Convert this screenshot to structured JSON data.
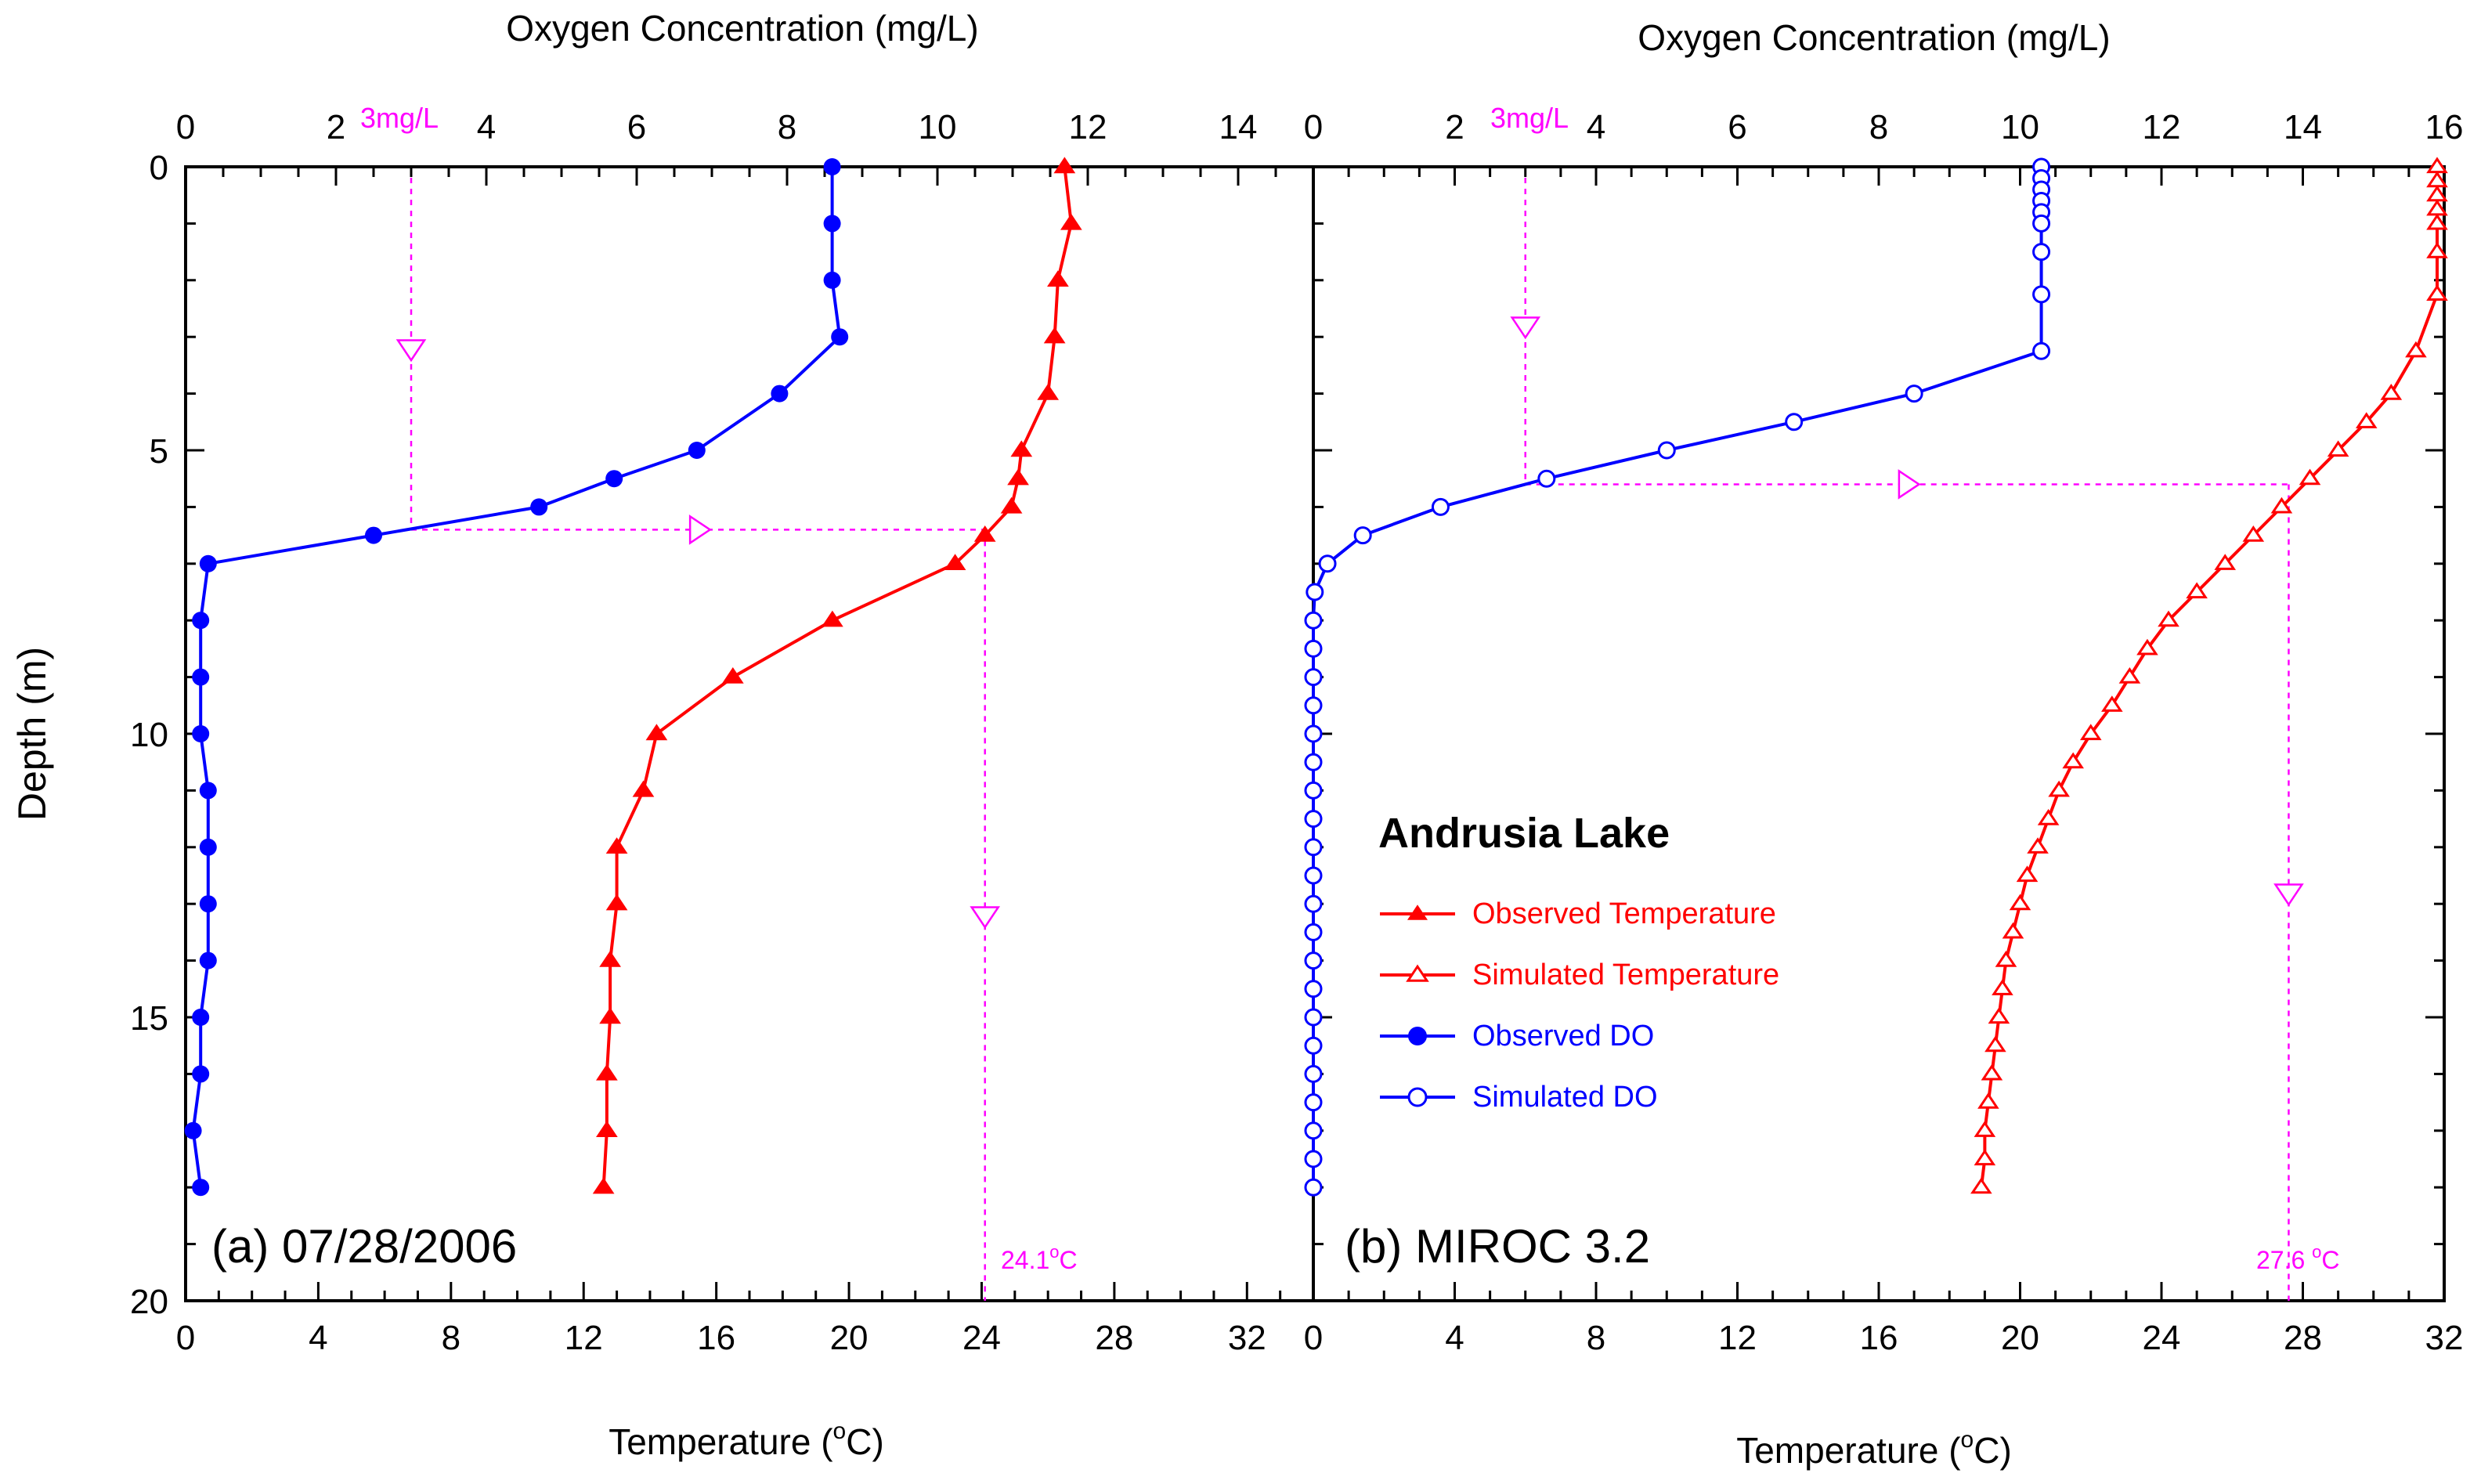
{
  "chart_data": {
    "type": "line",
    "shared": {
      "depth_label": "Depth (m)",
      "depth_ticks": [
        "0",
        "5",
        "10",
        "15",
        "20"
      ],
      "depth_range": [
        0,
        20
      ],
      "temp_label": "Temperature (",
      "temp_label_sup": "o",
      "temp_label_end": "C)",
      "do_label": "Oxygen Concentration (mg/L)"
    },
    "legend": {
      "title": "Andrusia Lake",
      "colors": {
        "temperature": "#ff0000",
        "do": "#0000ff",
        "annotation": "#ff00ff"
      },
      "items": [
        {
          "label": "Observed Temperature",
          "color": "#ff0000",
          "marker": "filled-triangle"
        },
        {
          "label": "Simulated Temperature",
          "color": "#ff0000",
          "marker": "open-triangle"
        },
        {
          "label": "Observed DO",
          "color": "#0000ff",
          "marker": "filled-circle"
        },
        {
          "label": "Simulated DO",
          "color": "#0000ff",
          "marker": "open-circle"
        }
      ]
    },
    "panels": [
      {
        "label": "(a) 07/28/2006",
        "temp_range": [
          0,
          34
        ],
        "temp_ticks": [
          "0",
          "4",
          "8",
          "12",
          "16",
          "20",
          "24",
          "28",
          "32"
        ],
        "do_range": [
          0,
          15
        ],
        "do_ticks": [
          "0",
          "2",
          "4",
          "6",
          "8",
          "10",
          "12",
          "14"
        ],
        "do_threshold": 3,
        "do_threshold_label": "3mg/L",
        "crossing_depth": 6.4,
        "crossing_temp": 24.1,
        "crossing_temp_label": "24.1",
        "crossing_temp_sup": "o",
        "crossing_temp_end": "C",
        "temperature": {
          "name": "Observed Temperature",
          "marker": "filled-triangle",
          "depth": [
            0,
            1,
            2,
            3,
            4,
            5,
            5.5,
            6,
            6.5,
            7,
            8,
            9,
            10,
            11,
            12,
            13,
            14,
            15,
            16,
            17,
            18
          ],
          "values": [
            26.5,
            26.7,
            26.3,
            26.2,
            26.0,
            25.2,
            25.1,
            24.9,
            24.1,
            23.2,
            19.5,
            16.5,
            14.2,
            13.8,
            13.0,
            13.0,
            12.8,
            12.8,
            12.7,
            12.7,
            12.6
          ]
        },
        "do": {
          "name": "Observed DO",
          "marker": "filled-circle",
          "depth": [
            0,
            1,
            2,
            3,
            4,
            5,
            5.5,
            6,
            6.5,
            7,
            8,
            9,
            10,
            11,
            12,
            13,
            14,
            15,
            16,
            17,
            18
          ],
          "values": [
            8.6,
            8.6,
            8.6,
            8.7,
            7.9,
            6.8,
            5.7,
            4.7,
            2.5,
            0.3,
            0.2,
            0.2,
            0.2,
            0.3,
            0.3,
            0.3,
            0.3,
            0.2,
            0.2,
            0.1,
            0.2
          ]
        }
      },
      {
        "label": "(b) MIROC 3.2",
        "temp_range": [
          0,
          32
        ],
        "temp_ticks": [
          "0",
          "4",
          "8",
          "12",
          "16",
          "20",
          "24",
          "28",
          "32"
        ],
        "do_range": [
          0,
          16
        ],
        "do_ticks": [
          "0",
          "2",
          "4",
          "6",
          "8",
          "10",
          "12",
          "14",
          "16"
        ],
        "do_threshold": 3,
        "do_threshold_label": "3mg/L",
        "crossing_depth": 5.6,
        "crossing_temp": 27.6,
        "crossing_temp_label": "27.6 ",
        "crossing_temp_sup": "o",
        "crossing_temp_end": "C",
        "temperature": {
          "name": "Simulated Temperature",
          "marker": "open-triangle",
          "depth": [
            0,
            0.25,
            0.5,
            0.75,
            1,
            1.5,
            2.25,
            3.25,
            4,
            4.5,
            5,
            5.5,
            6,
            6.5,
            7,
            7.5,
            8,
            8.5,
            9,
            9.5,
            10,
            10.5,
            11,
            11.5,
            12,
            12.5,
            13,
            13.5,
            14,
            14.5,
            15,
            15.5,
            16,
            16.5,
            17,
            17.5,
            18
          ],
          "values": [
            31.8,
            31.8,
            31.8,
            31.8,
            31.8,
            31.8,
            31.8,
            31.2,
            30.5,
            29.8,
            29.0,
            28.2,
            27.4,
            26.6,
            25.8,
            25.0,
            24.2,
            23.6,
            23.1,
            22.6,
            22.0,
            21.5,
            21.1,
            20.8,
            20.5,
            20.2,
            20.0,
            19.8,
            19.6,
            19.5,
            19.4,
            19.3,
            19.2,
            19.1,
            19.0,
            19.0,
            18.9
          ]
        },
        "do": {
          "name": "Simulated DO",
          "marker": "open-circle",
          "depth": [
            0,
            0.2,
            0.4,
            0.6,
            0.8,
            1,
            1.5,
            2.25,
            3.25,
            4,
            4.5,
            5,
            5.5,
            6,
            6.5,
            7,
            7.5,
            8,
            8.5,
            9,
            9.5,
            10,
            10.5,
            11,
            11.5,
            12,
            12.5,
            13,
            13.5,
            14,
            14.5,
            15,
            15.5,
            16,
            16.5,
            17,
            17.5,
            18
          ],
          "values": [
            10.3,
            10.3,
            10.3,
            10.3,
            10.3,
            10.3,
            10.3,
            10.3,
            10.3,
            8.5,
            6.8,
            5.0,
            3.3,
            1.8,
            0.7,
            0.2,
            0.02,
            0,
            0,
            0,
            0,
            0,
            0,
            0,
            0,
            0,
            0,
            0,
            0,
            0,
            0,
            0,
            0,
            0,
            0,
            0,
            0,
            0
          ]
        }
      }
    ]
  }
}
